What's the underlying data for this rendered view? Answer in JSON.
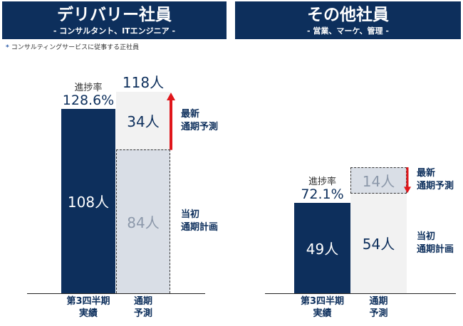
{
  "panels": {
    "left": {
      "title": "デリバリー社員",
      "subtitle": "- コンサルタント、ITエンジニア -"
    },
    "right": {
      "title": "その他社員",
      "subtitle": "- 営業、マーケ、管理 -"
    }
  },
  "footnote": {
    "mark": "*",
    "text": "コンサルティングサービスに従事する正社員"
  },
  "colors": {
    "navy": "#0d2f5c",
    "light_gray": "#d9dee6",
    "pale_gray": "#f2f2f2",
    "arrow_red": "#e0161b"
  },
  "labels": {
    "progress": "進捗率",
    "latest": [
      "最新",
      "通期予測"
    ],
    "initial": [
      "当初",
      "通期計画"
    ],
    "categories": [
      [
        "第3四半期",
        "実績"
      ],
      [
        "通期",
        "予測"
      ]
    ]
  },
  "chart_data": [
    {
      "type": "bar",
      "panel": "デリバリー社員",
      "categories": [
        "第3四半期実績",
        "通期予測"
      ],
      "q3_actual": 108,
      "initial_plan": 84,
      "latest_forecast": 118,
      "delta": 34,
      "progress_rate": "128.6%",
      "unit": "人",
      "value_labels": {
        "q3_actual": "108人",
        "initial_plan": "84人",
        "latest_forecast": "118人",
        "delta": "34人"
      },
      "delta_direction": "up"
    },
    {
      "type": "bar",
      "panel": "その他社員",
      "categories": [
        "第3四半期実績",
        "通期予測"
      ],
      "q3_actual": 49,
      "initial_plan": 68,
      "latest_forecast": 54,
      "delta": 14,
      "progress_rate": "72.1%",
      "unit": "人",
      "value_labels": {
        "q3_actual": "49人",
        "latest_forecast": "54人",
        "delta": "14人"
      },
      "delta_direction": "down"
    }
  ]
}
